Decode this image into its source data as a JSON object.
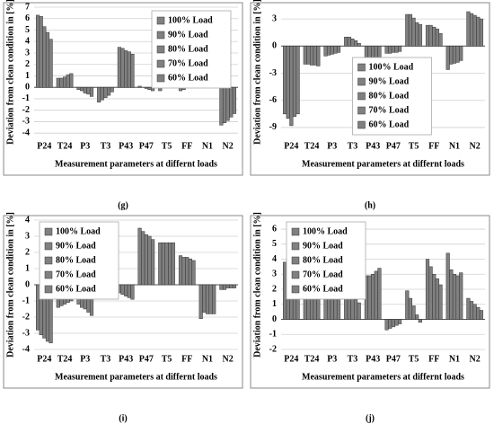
{
  "chart_data": [
    {
      "type": "bar",
      "caption": "(g)",
      "x_label": "Measurement parameters at differnt loads",
      "y_label": "Deviation from clean condition in [%]",
      "categories": [
        "P24",
        "T24",
        "P3",
        "T3",
        "P43",
        "P47",
        "T5",
        "FF",
        "N1",
        "N2"
      ],
      "series": [
        {
          "name": "100% Load",
          "color": "#808080",
          "values": [
            6.3,
            0.8,
            -0.2,
            -1.3,
            3.5,
            0.1,
            -0.3,
            -0.3,
            0.6,
            -3.3
          ]
        },
        {
          "name": "90% Load",
          "color": "#808080",
          "values": [
            6.2,
            0.8,
            -0.3,
            -1.1,
            3.4,
            0,
            0.3,
            -0.2,
            0.3,
            -3.1
          ]
        },
        {
          "name": "80% Load",
          "color": "#808080",
          "values": [
            5.3,
            0.9,
            -0.5,
            -0.9,
            3.2,
            -0.1,
            0.6,
            0.5,
            0.1,
            -2.9
          ]
        },
        {
          "name": "70% Load",
          "color": "#808080",
          "values": [
            4.8,
            1.1,
            -0.6,
            -0.7,
            3.1,
            -0.2,
            1.0,
            0.8,
            0.05,
            -2.6
          ]
        },
        {
          "name": "60% Load",
          "color": "#808080",
          "values": [
            4.2,
            1.2,
            -0.8,
            -0.4,
            2.9,
            -0.3,
            1.4,
            1.0,
            0,
            -2.3
          ]
        }
      ],
      "ylim": [
        -4.3,
        7
      ],
      "yticks": [
        -4,
        -3,
        -2,
        -1,
        0,
        1,
        2,
        3,
        4,
        5,
        6,
        7
      ],
      "legend": "upper right"
    },
    {
      "type": "bar",
      "caption": "(h)",
      "x_label": "Measurement parameters at differnt loads",
      "y_label": "Deviation from clean condition in [%]",
      "categories": [
        "P24",
        "T24",
        "P3",
        "T3",
        "P43",
        "P47",
        "T5",
        "FF",
        "N1",
        "N2"
      ],
      "series": [
        {
          "name": "100% Load",
          "color": "#808080",
          "values": [
            -7.5,
            -2,
            -1.1,
            1,
            -4.4,
            -0.8,
            3.5,
            2.3,
            -2.6,
            3.8
          ]
        },
        {
          "name": "90% Load",
          "color": "#808080",
          "values": [
            -8,
            -2,
            -1,
            1,
            -4.5,
            -0.8,
            3.5,
            2.3,
            -2,
            3.6
          ]
        },
        {
          "name": "80% Load",
          "color": "#808080",
          "values": [
            -8.8,
            -2.1,
            -0.9,
            0.8,
            -4.5,
            -0.7,
            3.1,
            2.1,
            -1.9,
            3.4
          ]
        },
        {
          "name": "70% Load",
          "color": "#808080",
          "values": [
            -7.8,
            -2.1,
            -0.8,
            0.6,
            -4.6,
            -0.7,
            2.6,
            1.9,
            -1.8,
            3.2
          ]
        },
        {
          "name": "60% Load",
          "color": "#808080",
          "values": [
            -7.5,
            -2.2,
            -0.7,
            0.3,
            -4.2,
            -0.6,
            2.4,
            1.4,
            -1.6,
            3
          ]
        }
      ],
      "ylim": [
        -10,
        4.3
      ],
      "yticks": [
        -9,
        -6,
        -3,
        0,
        3
      ],
      "legend": "lower center"
    },
    {
      "type": "bar",
      "caption": "(i)",
      "x_label": "Measurement parameters at differnt loads",
      "y_label": "Deviation from clean condition in [%]",
      "categories": [
        "P24",
        "T24",
        "P3",
        "T3",
        "P43",
        "P47",
        "T5",
        "FF",
        "N1",
        "N2"
      ],
      "series": [
        {
          "name": "100% Load",
          "color": "#808080",
          "values": [
            -2.8,
            -1.4,
            -1.2,
            -0.7,
            -0.5,
            3.5,
            2.6,
            1.8,
            -2.1,
            -0.3
          ]
        },
        {
          "name": "90% Load",
          "color": "#808080",
          "values": [
            -3.1,
            -1.3,
            -1.4,
            -0.6,
            -0.6,
            3.3,
            2.6,
            1.7,
            -1.7,
            -0.3
          ]
        },
        {
          "name": "80% Load",
          "color": "#808080",
          "values": [
            -3.3,
            -1.2,
            -1.5,
            -0.5,
            -0.7,
            3.1,
            2.6,
            1.7,
            -1.8,
            -0.2
          ]
        },
        {
          "name": "70% Load",
          "color": "#808080",
          "values": [
            -3.5,
            -1.1,
            -1.7,
            -0.4,
            -0.8,
            3.0,
            2.6,
            1.6,
            -1.8,
            -0.2
          ]
        },
        {
          "name": "60% Load",
          "color": "#808080",
          "values": [
            -3.6,
            -1,
            -1.9,
            -0.3,
            -0.9,
            2.8,
            2.6,
            1.5,
            -1.8,
            -0.2
          ]
        }
      ],
      "ylim": [
        -4,
        4
      ],
      "yticks": [
        -4,
        -3,
        -2,
        -1,
        0,
        1,
        2,
        3,
        4
      ],
      "legend": "upper left"
    },
    {
      "type": "bar",
      "caption": "(j)",
      "x_label": "Measurement parameters at differnt loads",
      "y_label": "Deviation from clean condition in [%]",
      "categories": [
        "P24",
        "T24",
        "P3",
        "T3",
        "P43",
        "P47",
        "T5",
        "FF",
        "N1",
        "N2"
      ],
      "series": [
        {
          "name": "100% Load",
          "color": "#808080",
          "values": [
            3.8,
            2.5,
            3.6,
            2.3,
            2.9,
            -0.7,
            1.9,
            4,
            4.4,
            1.4
          ]
        },
        {
          "name": "90% Load",
          "color": "#808080",
          "values": [
            4,
            2.1,
            3.7,
            1.9,
            2.9,
            -0.6,
            1.4,
            3.5,
            3.3,
            1.2
          ]
        },
        {
          "name": "80% Load",
          "color": "#808080",
          "values": [
            4.2,
            1.9,
            3.7,
            1.6,
            3,
            -0.5,
            0.9,
            3,
            3,
            1
          ]
        },
        {
          "name": "70% Load",
          "color": "#808080",
          "values": [
            4.6,
            1.7,
            4,
            1.3,
            3.2,
            -0.4,
            0.3,
            2.7,
            2.9,
            0.8
          ]
        },
        {
          "name": "60% Load",
          "color": "#808080",
          "values": [
            5.3,
            1.6,
            4.2,
            1.1,
            3.4,
            -0.3,
            -0.2,
            2.3,
            3.1,
            0.6
          ]
        }
      ],
      "ylim": [
        -2,
        6.6
      ],
      "yticks": [
        -2,
        -1,
        0,
        1,
        2,
        3,
        4,
        5,
        6
      ],
      "legend": "upper left"
    }
  ]
}
